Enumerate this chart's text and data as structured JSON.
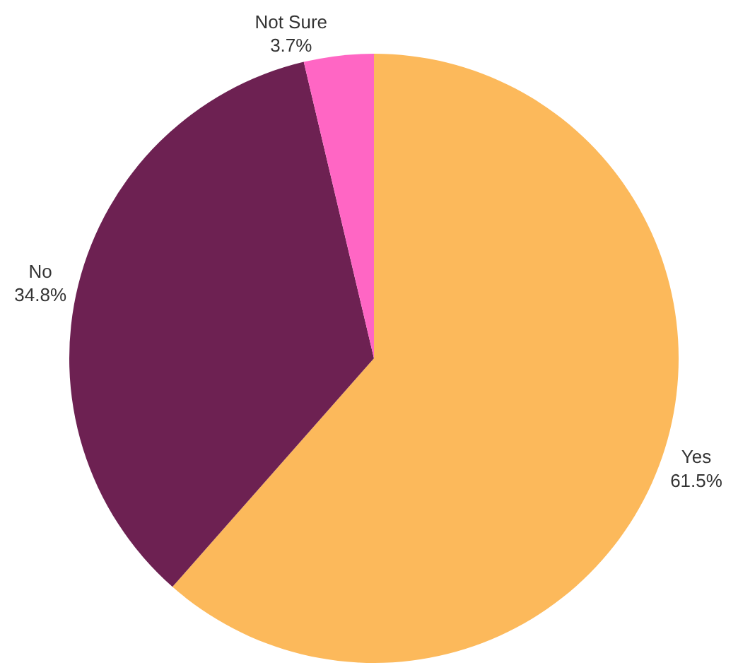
{
  "chart_data": {
    "type": "pie",
    "categories": [
      "Yes",
      "No",
      "Not Sure"
    ],
    "values": [
      61.5,
      34.8,
      3.7
    ],
    "value_labels": [
      "61.5%",
      "34.8%",
      "3.7%"
    ],
    "colors": [
      "#fcb95b",
      "#6d2152",
      "#ff66c4"
    ],
    "legend": false
  }
}
